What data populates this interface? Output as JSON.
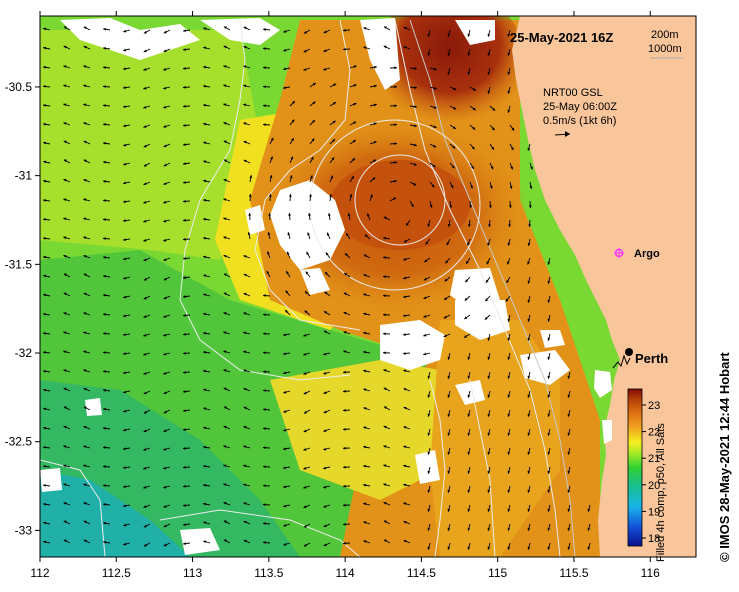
{
  "map": {
    "datetime": "25-May-2021 16Z",
    "legend_depths": [
      "200m",
      "1000m"
    ],
    "current_info": [
      "NRT00 GSL",
      "25-May 06:00Z",
      "0.5m/s (1kt 6h)"
    ],
    "argo_label": "Argo",
    "city_label": "Perth",
    "colorbar_title": "Filled 4h comp, p50, All Sats",
    "credit": "© IMOS 28-May-2021 12:44 Hobart",
    "colorbar_ticks": [
      "23",
      "22",
      "21",
      "20",
      "19",
      "18"
    ],
    "x_ticks": [
      "112",
      "112.5",
      "113",
      "113.5",
      "114",
      "114.5",
      "115",
      "115.5",
      "116"
    ],
    "y_ticks": [
      "-30.5",
      "-31",
      "-31.5",
      "-32",
      "-32.5",
      "-33"
    ],
    "colors": {
      "land": "#f9c59a",
      "cloud": "#ffffff",
      "argo": "#ff33ff",
      "contour_200m": "#c8c8c8",
      "contour_1000m": "#ececec"
    },
    "icons": [
      "argo-float-icon",
      "city-marker-icon",
      "current-vector-arrow-icon"
    ]
  },
  "chart_data": {
    "type": "heatmap",
    "title": "25-May-2021 16Z",
    "xlabel": "",
    "ylabel": "",
    "xlim": [
      112,
      116.3
    ],
    "ylim": [
      -33.15,
      -30.1
    ],
    "colorbar_range": [
      17.7,
      23.6
    ],
    "colorbar_ticks": [
      18,
      19,
      20,
      21,
      22,
      23
    ],
    "features": [
      {
        "name": "Argo",
        "lon": 115.74,
        "lat": -31.47
      },
      {
        "name": "Perth",
        "lon": 115.86,
        "lat": -31.95
      }
    ],
    "sst_regions": [
      {
        "desc": "warm eddy",
        "lon": 114.5,
        "lat": -31.1,
        "sst": 22.9
      },
      {
        "desc": "warm northern core",
        "lon": 114.6,
        "lat": -30.4,
        "sst": 23.4
      },
      {
        "desc": "offshore south-west",
        "lon": 112.5,
        "lat": -32.7,
        "sst": 20.3
      },
      {
        "desc": "coolest south-west",
        "lon": 112.4,
        "lat": -33.0,
        "sst": 19.6
      }
    ]
  }
}
